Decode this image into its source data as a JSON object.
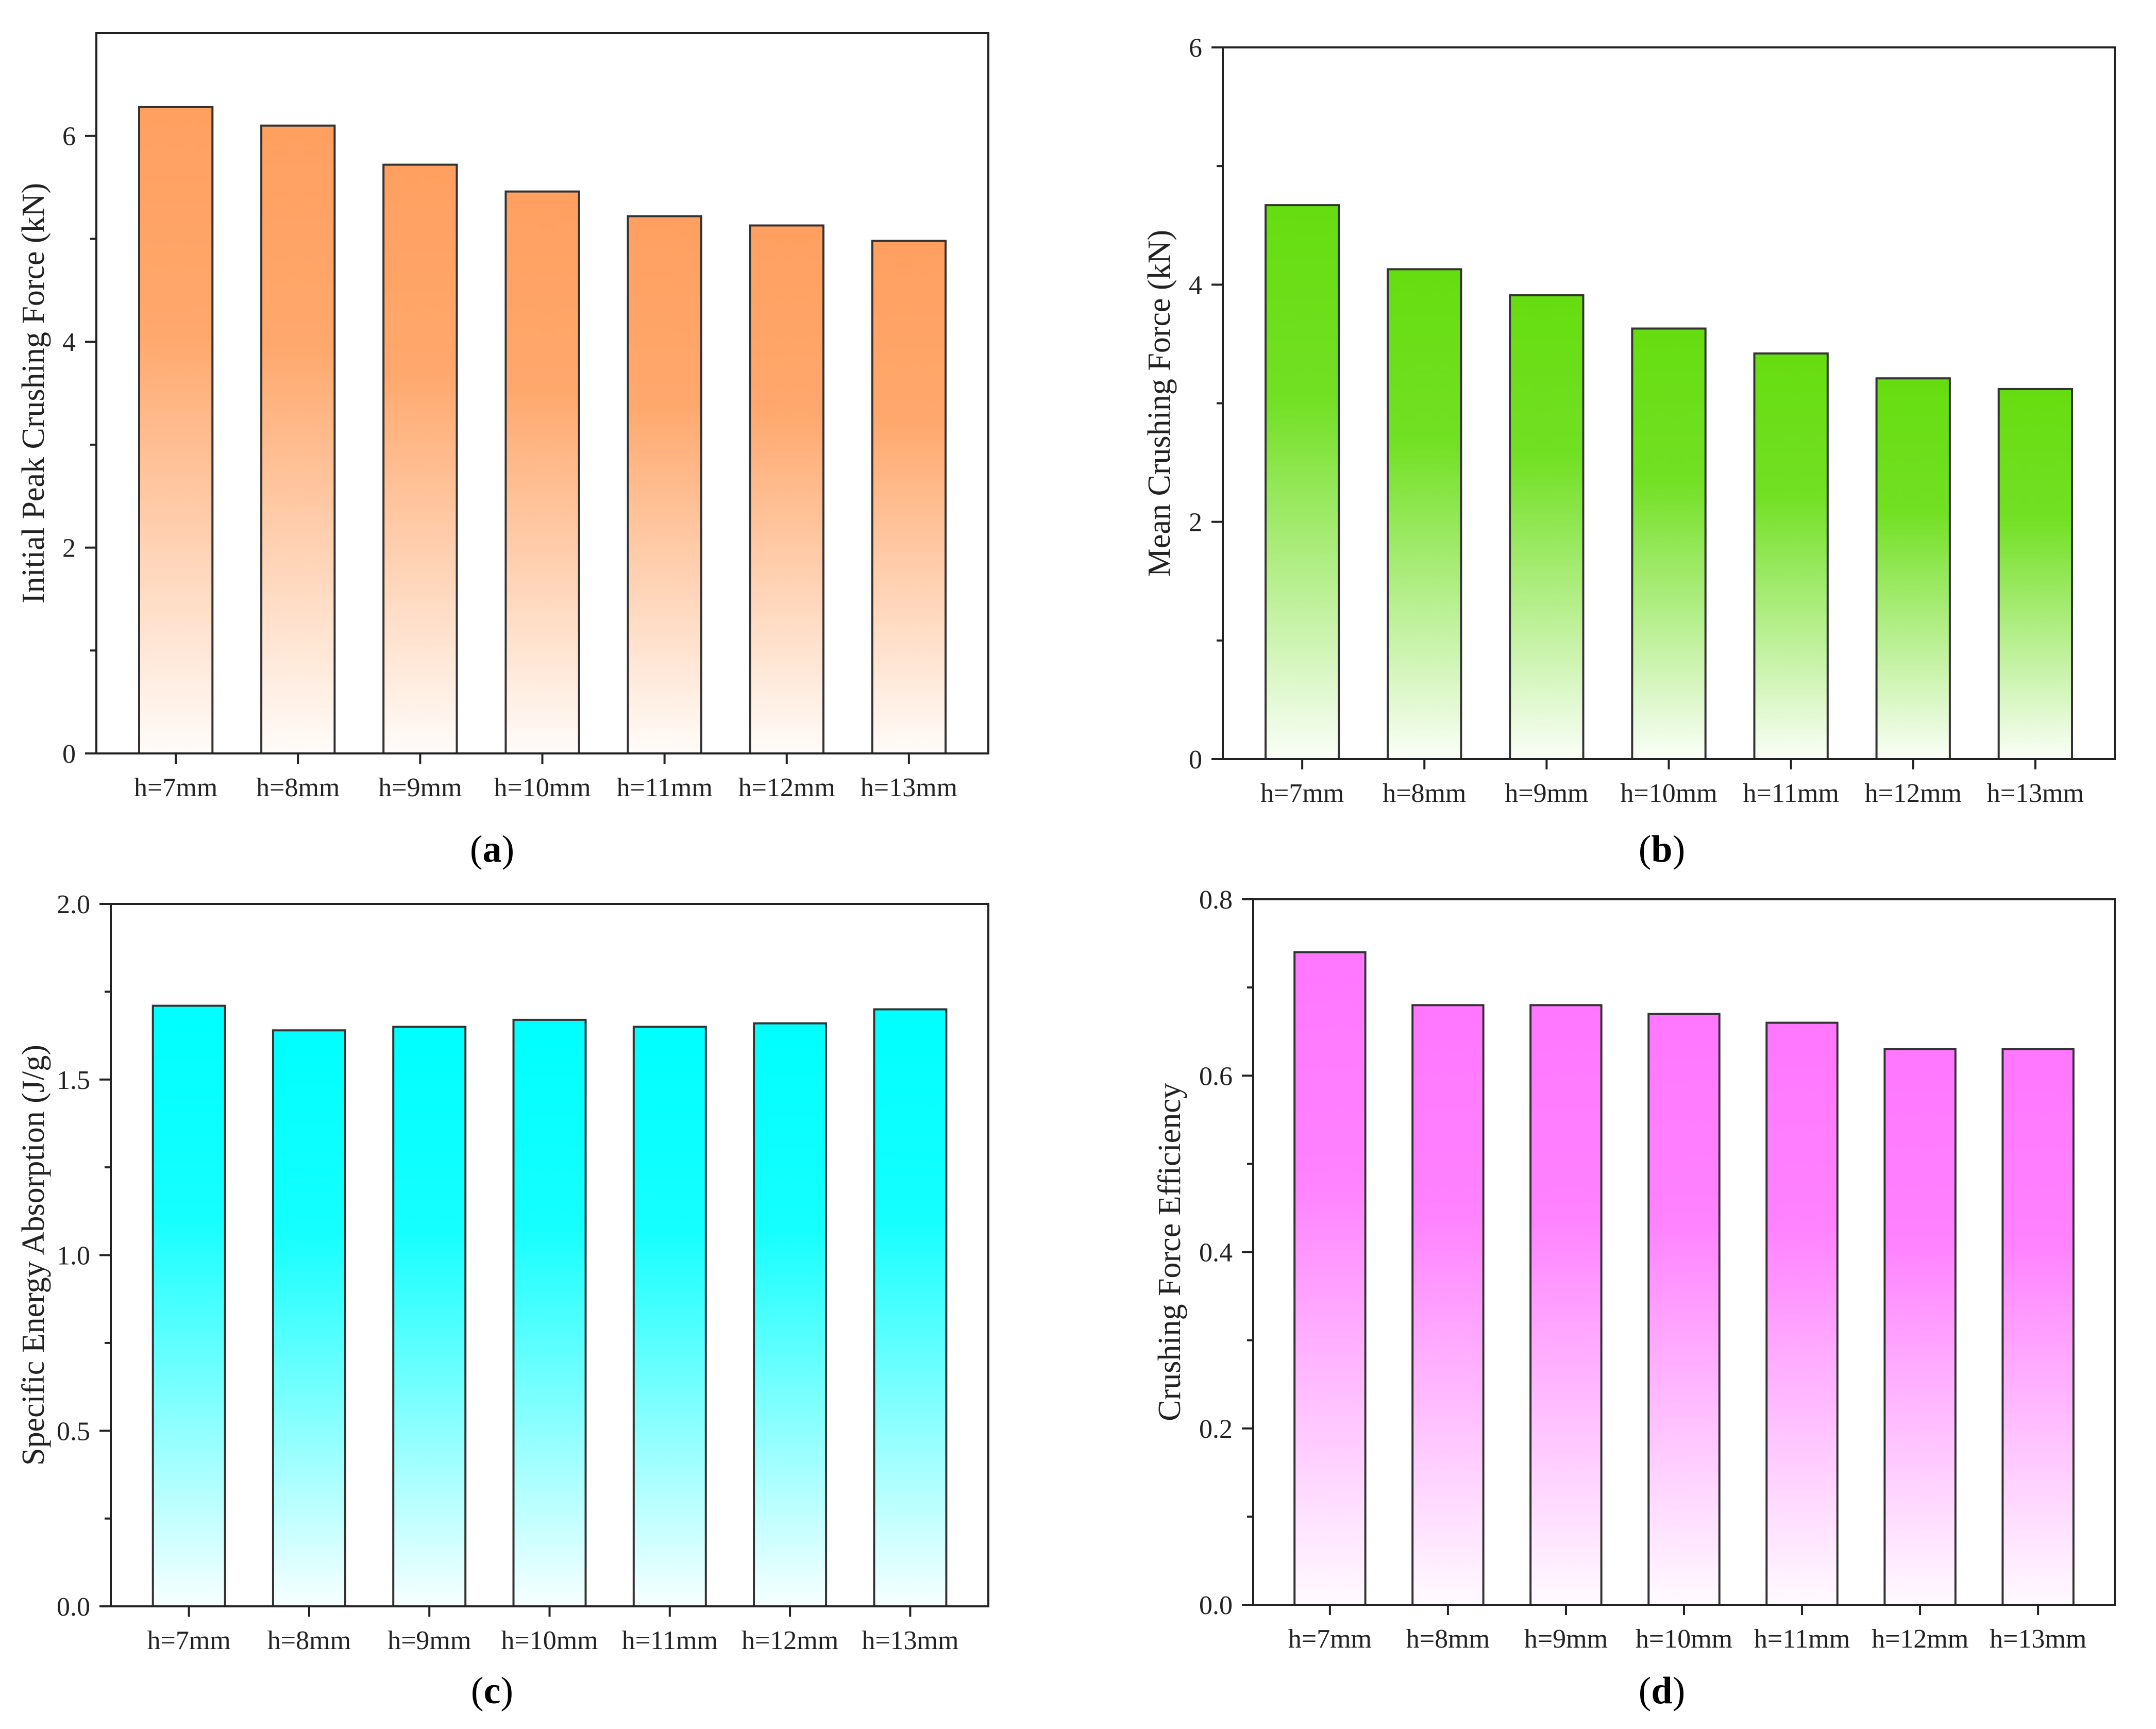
{
  "chart_data": [
    {
      "type": "bar",
      "panel": "a",
      "categories": [
        "h=7mm",
        "h=8mm",
        "h=9mm",
        "h=10mm",
        "h=11mm",
        "h=12mm",
        "h=13mm"
      ],
      "values": [
        6.28,
        6.1,
        5.72,
        5.46,
        5.22,
        5.13,
        4.98
      ],
      "xlabel": "",
      "ylabel": "Initial Peak Crushing Force (kN)",
      "ylim": [
        0,
        7
      ],
      "yticks": [
        0,
        2,
        4,
        6
      ],
      "ytick_labels": [
        "0",
        "2",
        "4",
        "6"
      ],
      "color": "#ffa060",
      "caption": [
        "(",
        "a",
        ")"
      ]
    },
    {
      "type": "bar",
      "panel": "b",
      "categories": [
        "h=7mm",
        "h=8mm",
        "h=9mm",
        "h=10mm",
        "h=11mm",
        "h=12mm",
        "h=13mm"
      ],
      "values": [
        4.67,
        4.13,
        3.91,
        3.63,
        3.42,
        3.21,
        3.12
      ],
      "xlabel": "",
      "ylabel": "Mean Crushing Force (kN)",
      "ylim": [
        0,
        6
      ],
      "yticks": [
        0,
        2,
        4,
        6
      ],
      "ytick_labels": [
        "0",
        "2",
        "4",
        "6"
      ],
      "color": "#66dd10",
      "caption": [
        "(",
        "b",
        ")"
      ]
    },
    {
      "type": "bar",
      "panel": "c",
      "categories": [
        "h=7mm",
        "h=8mm",
        "h=9mm",
        "h=10mm",
        "h=11mm",
        "h=12mm",
        "h=13mm"
      ],
      "values": [
        1.71,
        1.64,
        1.65,
        1.67,
        1.65,
        1.66,
        1.7
      ],
      "xlabel": "",
      "ylabel": "Specific Energy Absorption (J/g)",
      "ylim": [
        0,
        2.0
      ],
      "yticks": [
        0,
        0.5,
        1.0,
        1.5,
        2.0
      ],
      "ytick_labels": [
        "0.0",
        "0.5",
        "1.0",
        "1.5",
        "2.0"
      ],
      "color": "#00ffff",
      "caption": [
        "(",
        "c",
        ")"
      ]
    },
    {
      "type": "bar",
      "panel": "d",
      "categories": [
        "h=7mm",
        "h=8mm",
        "h=9mm",
        "h=10mm",
        "h=11mm",
        "h=12mm",
        "h=13mm"
      ],
      "values": [
        0.74,
        0.68,
        0.68,
        0.67,
        0.66,
        0.63,
        0.63
      ],
      "xlabel": "",
      "ylabel": "Crushing Force Efficiency",
      "ylim": [
        0,
        0.8
      ],
      "yticks": [
        0,
        0.2,
        0.4,
        0.6,
        0.8
      ],
      "ytick_labels": [
        "0.0",
        "0.2",
        "0.4",
        "0.6",
        "0.8"
      ],
      "color": "#ff77ff",
      "caption": [
        "(",
        "d",
        ")"
      ]
    }
  ]
}
